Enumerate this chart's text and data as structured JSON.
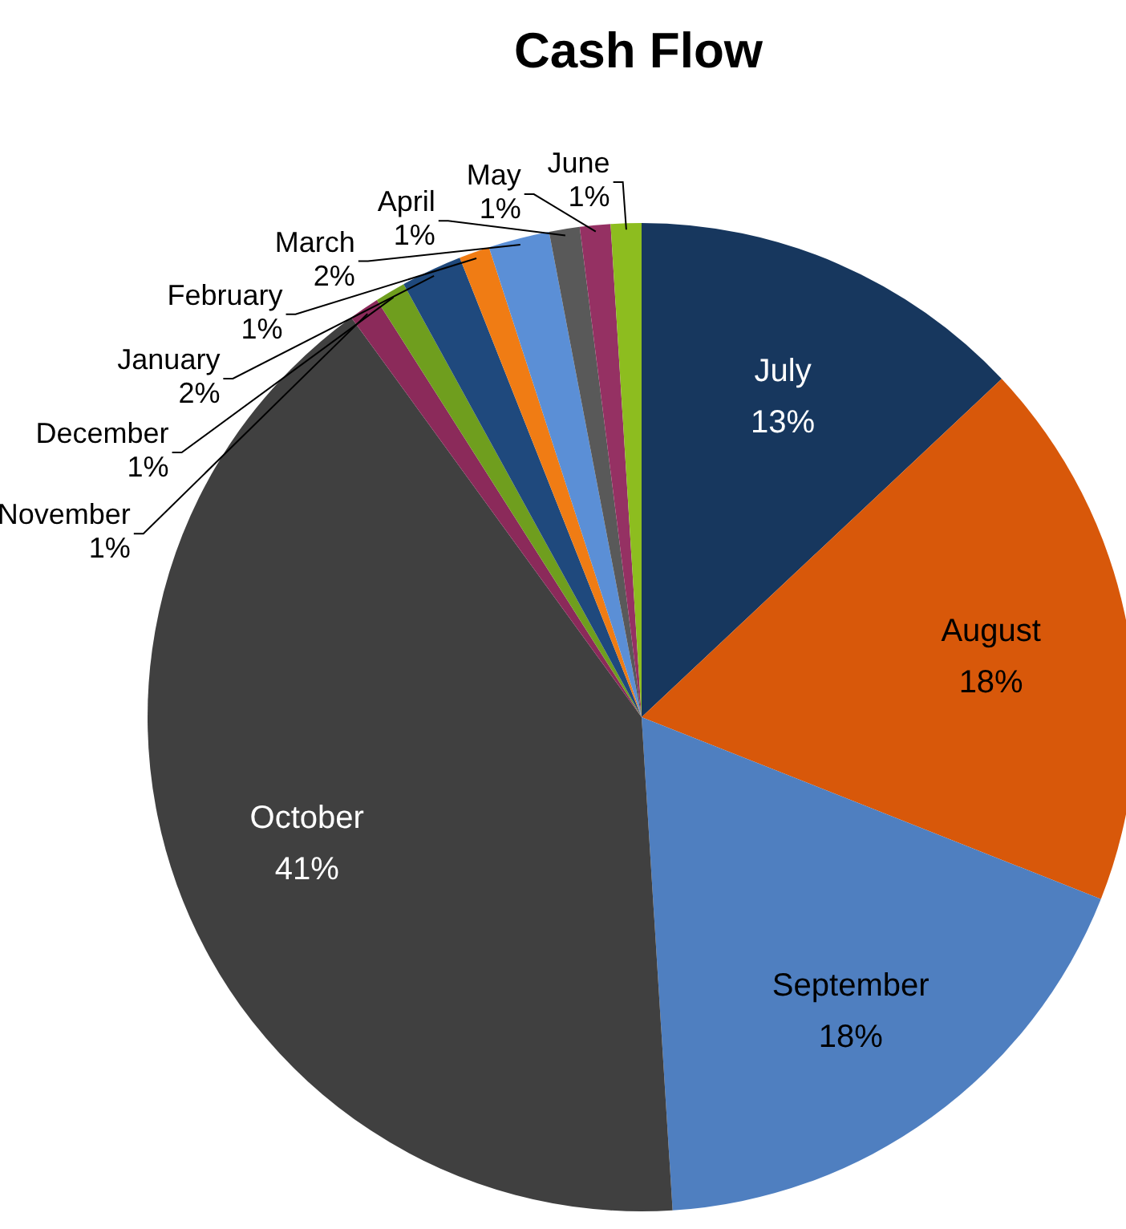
{
  "chart_data": {
    "type": "pie",
    "title": "Cash Flow",
    "categories": [
      "July",
      "August",
      "September",
      "October",
      "November",
      "December",
      "January",
      "February",
      "March",
      "April",
      "May",
      "June"
    ],
    "values": [
      13,
      18,
      18,
      41,
      1,
      1,
      2,
      1,
      2,
      1,
      1,
      1
    ],
    "colors": [
      "#17375e",
      "#d8580a",
      "#4f7fc0",
      "#404040",
      "#8b2a5a",
      "#6f9e1e",
      "#1f497d",
      "#f07c14",
      "#5b8fd6",
      "#595959",
      "#953163",
      "#8dbd1f"
    ],
    "value_labels": [
      "13%",
      "18%",
      "18%",
      "41%",
      "1%",
      "1%",
      "2%",
      "1%",
      "2%",
      "1%",
      "1%",
      "1%"
    ]
  }
}
